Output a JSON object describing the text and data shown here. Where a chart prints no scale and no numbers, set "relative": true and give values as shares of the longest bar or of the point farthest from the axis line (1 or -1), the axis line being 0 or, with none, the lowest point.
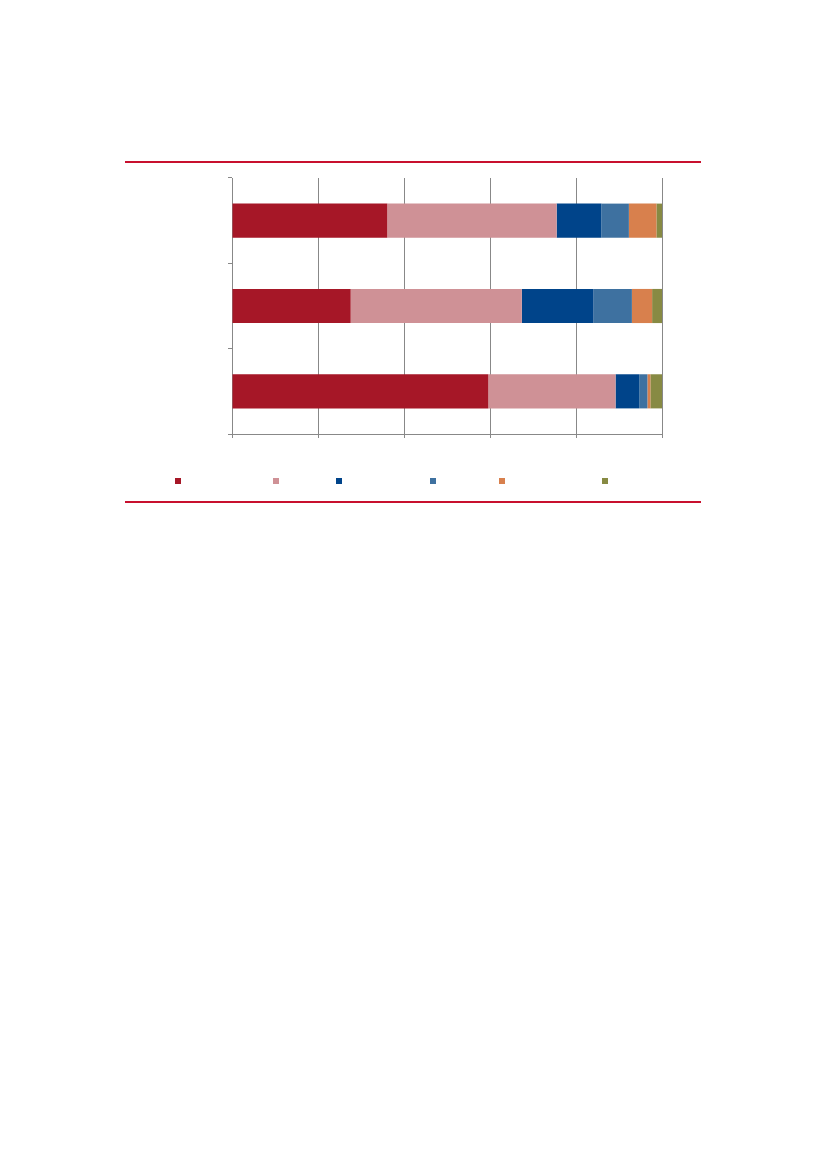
{
  "chart_data": {
    "type": "bar",
    "orientation": "horizontal",
    "stacked": true,
    "relative": true,
    "grid": "x",
    "categories": [
      null,
      null,
      null
    ],
    "series": [
      {
        "color": "#a61727",
        "values": [
          0.361,
          0.276,
          0.596
        ]
      },
      {
        "color": "#cf9196",
        "values": [
          0.394,
          0.398,
          0.296
        ]
      },
      {
        "color": "#00448a",
        "values": [
          0.104,
          0.166,
          0.055
        ]
      },
      {
        "color": "#3e71a0",
        "values": [
          0.064,
          0.09,
          0.019
        ]
      },
      {
        "color": "#d8804d",
        "values": [
          0.064,
          0.047,
          0.007
        ]
      },
      {
        "color": "#878a43",
        "values": [
          0.013,
          0.023,
          0.027
        ]
      }
    ]
  }
}
